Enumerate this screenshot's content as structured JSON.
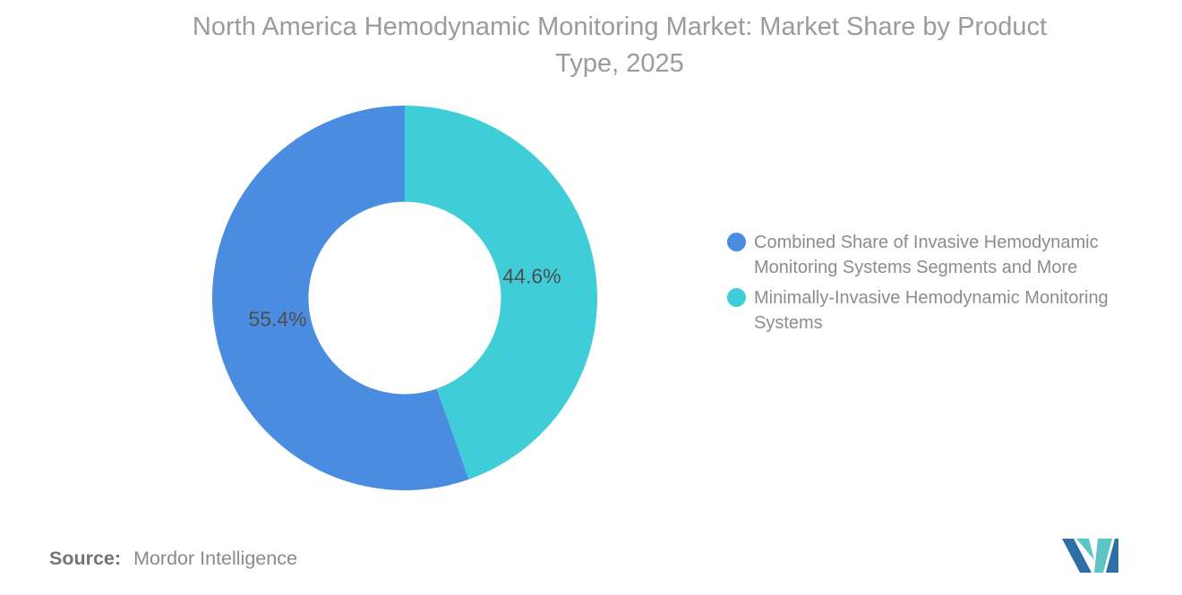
{
  "chart_data": {
    "type": "pie",
    "donut": true,
    "title": "North America Hemodynamic Monitoring Market: Market Share by Product Type, 2025",
    "segments": [
      {
        "label": "Combined Share of Invasive Hemodynamic Monitoring Systems Segments and More",
        "value": 55.4,
        "display": "55.4%",
        "color": "#4a8ce0"
      },
      {
        "label": "Minimally-Invasive Hemodynamic Monitoring Systems",
        "value": 44.6,
        "display": "44.6%",
        "color": "#3fcdd8"
      }
    ],
    "start_angle_deg": 160.56,
    "inner_radius_ratio": 0.5,
    "legend_position": "right",
    "labels_inside": true,
    "label_color": "#4f4f4f",
    "title_color": "#9b9b9b"
  },
  "source": {
    "label": "Source:",
    "value": "Mordor Intelligence"
  },
  "logo": {
    "name": "mordor-intelligence-logo",
    "colors": {
      "blue": "#2f6fa8",
      "teal": "#5cc6c2"
    }
  }
}
